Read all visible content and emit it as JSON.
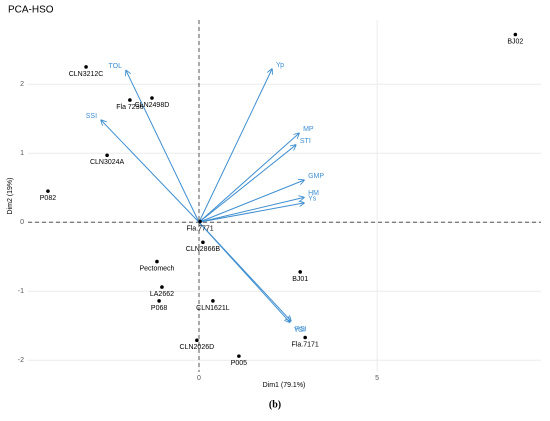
{
  "chart_data": {
    "type": "biplot",
    "title": "PCA-HSO",
    "caption": "(b)",
    "x_label": "Dim1 (79.1%)",
    "y_label": "Dim2 (19%)",
    "xlim": [
      -4.8,
      9.6
    ],
    "ylim": [
      -2.17,
      2.93
    ],
    "xticks": [
      0,
      5
    ],
    "yticks": [
      -2,
      -1,
      0,
      1,
      2
    ],
    "grid": true,
    "points": {
      "color": "#000000",
      "labels": [
        "BJ02",
        "CLN3212C",
        "CLN2498D",
        "Fla 7236",
        "CLN3024A",
        "P082",
        "Fla.7771",
        "CLN2866B",
        "Pectomech",
        "LA2662",
        "P068",
        "CLN1621L",
        "BJ01",
        "Fla.7171",
        "CLN2026D",
        "P005"
      ],
      "x": [
        8.88,
        -3.17,
        -1.32,
        -1.94,
        -2.58,
        -4.24,
        0.03,
        0.11,
        -1.18,
        -1.04,
        -1.12,
        0.39,
        2.84,
        2.98,
        -0.06,
        1.12
      ],
      "y": [
        2.72,
        2.25,
        1.8,
        1.77,
        0.97,
        0.45,
        0.01,
        -0.29,
        -0.57,
        -0.94,
        -1.14,
        -1.14,
        -0.72,
        -1.67,
        -1.71,
        -1.94
      ]
    },
    "arrows": {
      "color": "#3f8fd0",
      "labels": [
        "TOL",
        "Yp",
        "SSI",
        "MP",
        "STI",
        "GMP",
        "HM",
        "Ys",
        "RSI",
        "YSI"
      ],
      "x": [
        -2.05,
        2.05,
        -2.75,
        2.81,
        2.72,
        2.95,
        2.95,
        2.95,
        2.58,
        2.55
      ],
      "y": [
        2.2,
        2.22,
        1.48,
        1.29,
        1.12,
        0.61,
        0.36,
        0.28,
        -1.43,
        -1.45
      ]
    }
  }
}
